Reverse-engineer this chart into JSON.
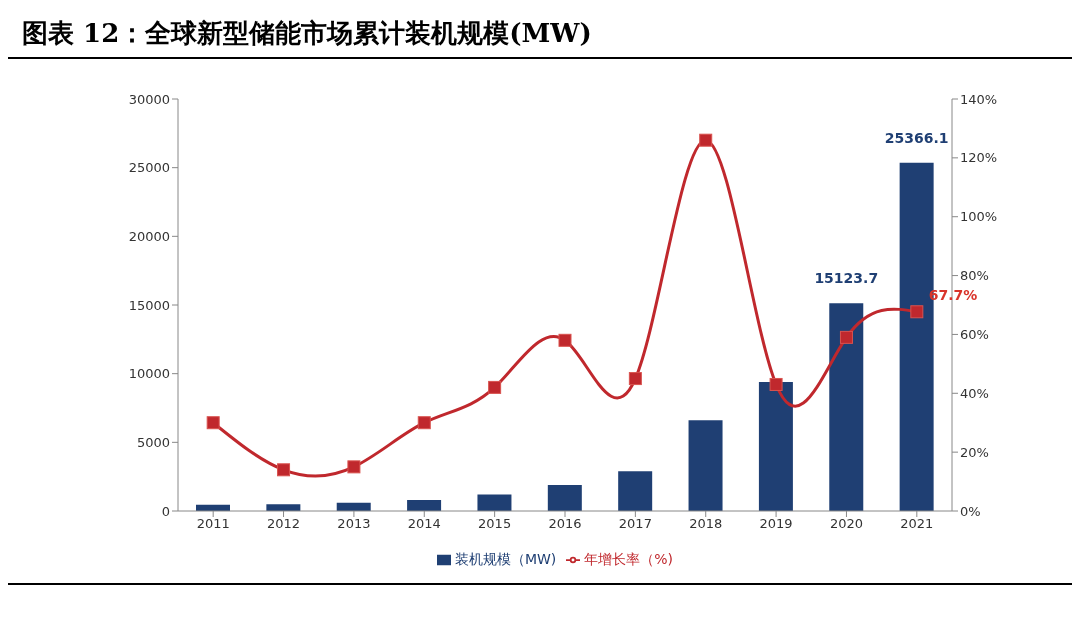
{
  "chart_data": {
    "type": "bar",
    "title": "图表 12：全球新型储能市场累计装机规模(MW)",
    "categories": [
      "2011",
      "2012",
      "2013",
      "2014",
      "2015",
      "2016",
      "2017",
      "2018",
      "2019",
      "2020",
      "2021"
    ],
    "series": [
      {
        "name": "装机规模（MW)",
        "color": "#1f3f73",
        "values": [
          450,
          500,
          600,
          800,
          1200,
          1900,
          2900,
          6600,
          9400,
          15123.7,
          25366.1
        ],
        "value_labels": [
          null,
          null,
          null,
          null,
          null,
          null,
          null,
          null,
          null,
          "15123.7",
          "25366.1"
        ]
      },
      {
        "name": "年增长率（%)",
        "type": "line",
        "axis": "y2",
        "color": "#c0282d",
        "values": [
          30,
          14,
          15,
          30,
          42,
          58,
          45,
          126,
          43,
          59,
          67.7
        ],
        "value_labels": [
          null,
          null,
          null,
          null,
          null,
          null,
          null,
          null,
          null,
          null,
          "67.7%"
        ]
      }
    ],
    "ylim": [
      0,
      30000
    ],
    "yticks": [
      0,
      5000,
      10000,
      15000,
      20000,
      25000,
      30000
    ],
    "y2lim": [
      0,
      140
    ],
    "y2ticks": [
      {
        "value": 0,
        "label": "0%"
      },
      {
        "value": 20,
        "label": "20%"
      },
      {
        "value": 40,
        "label": "40%"
      },
      {
        "value": 60,
        "label": "60%"
      },
      {
        "value": 80,
        "label": "80%"
      },
      {
        "value": 100,
        "label": "100%"
      },
      {
        "value": 120,
        "label": "120%"
      },
      {
        "value": 140,
        "label": "140%"
      }
    ],
    "marker": "square",
    "legend": "bottom",
    "grid": false
  }
}
